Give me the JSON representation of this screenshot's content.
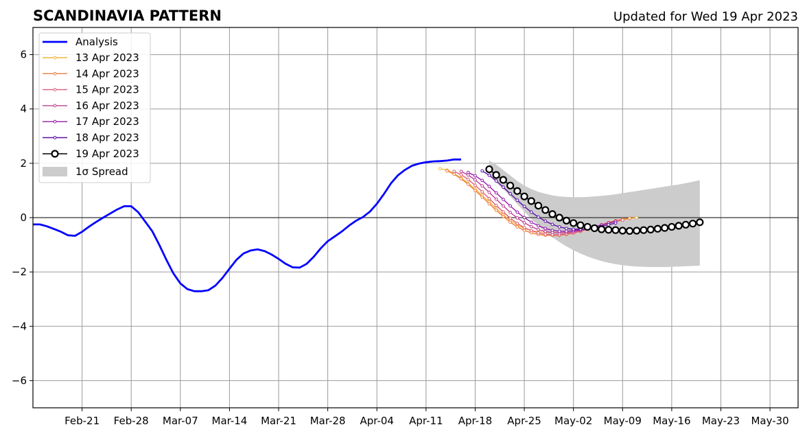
{
  "chart_data": {
    "type": "line",
    "title": "SCANDINAVIA PATTERN",
    "subtitle": "Updated for Wed 19 Apr 2023",
    "xlabel": "",
    "ylabel": "",
    "xlim": [
      "2023-02-14",
      "2023-06-03"
    ],
    "ylim": [
      -7,
      7
    ],
    "grid": true,
    "legend_position": "top-left",
    "x_ticks": [
      {
        "date": "2023-02-21",
        "label": "Feb-21"
      },
      {
        "date": "2023-02-28",
        "label": "Feb-28"
      },
      {
        "date": "2023-03-07",
        "label": "Mar-07"
      },
      {
        "date": "2023-03-14",
        "label": "Mar-14"
      },
      {
        "date": "2023-03-21",
        "label": "Mar-21"
      },
      {
        "date": "2023-03-28",
        "label": "Mar-28"
      },
      {
        "date": "2023-04-04",
        "label": "Apr-04"
      },
      {
        "date": "2023-04-11",
        "label": "Apr-11"
      },
      {
        "date": "2023-04-18",
        "label": "Apr-18"
      },
      {
        "date": "2023-04-25",
        "label": "Apr-25"
      },
      {
        "date": "2023-05-02",
        "label": "May-02"
      },
      {
        "date": "2023-05-09",
        "label": "May-09"
      },
      {
        "date": "2023-05-16",
        "label": "May-16"
      },
      {
        "date": "2023-05-23",
        "label": "May-23"
      },
      {
        "date": "2023-05-30",
        "label": "May-30"
      }
    ],
    "y_ticks": [
      {
        "value": -6,
        "label": "−6"
      },
      {
        "value": -4,
        "label": "−4"
      },
      {
        "value": -2,
        "label": "−2"
      },
      {
        "value": 0,
        "label": "0"
      },
      {
        "value": 2,
        "label": "2"
      },
      {
        "value": 4,
        "label": "4"
      },
      {
        "value": 6,
        "label": "6"
      }
    ],
    "analysis": {
      "name": "Analysis",
      "color": "#0000ff",
      "start_date": "2023-02-14",
      "values": [
        -0.25,
        -0.25,
        -0.32,
        -0.42,
        -0.52,
        -0.65,
        -0.67,
        -0.52,
        -0.33,
        -0.16,
        0.0,
        0.15,
        0.3,
        0.42,
        0.42,
        0.2,
        -0.15,
        -0.5,
        -1.0,
        -1.55,
        -2.05,
        -2.42,
        -2.63,
        -2.71,
        -2.71,
        -2.67,
        -2.5,
        -2.22,
        -1.88,
        -1.55,
        -1.32,
        -1.21,
        -1.17,
        -1.23,
        -1.36,
        -1.52,
        -1.7,
        -1.83,
        -1.84,
        -1.7,
        -1.44,
        -1.13,
        -0.87,
        -0.69,
        -0.51,
        -0.3,
        -0.12,
        0.02,
        0.22,
        0.51,
        0.87,
        1.26,
        1.56,
        1.76,
        1.91,
        1.99,
        2.04,
        2.07,
        2.08,
        2.1,
        2.14,
        2.14
      ]
    },
    "forecasts": [
      {
        "name": "13 Apr 2023",
        "color": "#f7b53a",
        "start_date": "2023-04-13",
        "values": [
          1.8,
          1.75,
          1.62,
          1.46,
          1.27,
          1.05,
          0.82,
          0.58,
          0.34,
          0.1,
          -0.1,
          -0.27,
          -0.4,
          -0.48,
          -0.52,
          -0.54,
          -0.55,
          -0.56,
          -0.56,
          -0.54,
          -0.5,
          -0.44,
          -0.37,
          -0.29,
          -0.21,
          -0.14,
          -0.08,
          -0.03,
          0.0
        ]
      },
      {
        "name": "14 Apr 2023",
        "color": "#ee7e3a",
        "start_date": "2023-04-14",
        "values": [
          1.72,
          1.6,
          1.43,
          1.23,
          1.0,
          0.76,
          0.51,
          0.27,
          0.04,
          -0.17,
          -0.34,
          -0.47,
          -0.56,
          -0.62,
          -0.65,
          -0.66,
          -0.65,
          -0.62,
          -0.57,
          -0.5,
          -0.42,
          -0.34,
          -0.26,
          -0.18,
          -0.11,
          -0.06,
          -0.02
        ]
      },
      {
        "name": "15 Apr 2023",
        "color": "#df5b78",
        "start_date": "2023-04-15",
        "values": [
          1.7,
          1.58,
          1.41,
          1.19,
          0.95,
          0.7,
          0.45,
          0.21,
          -0.02,
          -0.21,
          -0.37,
          -0.48,
          -0.56,
          -0.61,
          -0.63,
          -0.63,
          -0.6,
          -0.56,
          -0.5,
          -0.43,
          -0.35,
          -0.27,
          -0.2,
          -0.14,
          -0.09
        ]
      },
      {
        "name": "16 Apr 2023",
        "color": "#be3d93",
        "start_date": "2023-04-16",
        "values": [
          1.7,
          1.57,
          1.39,
          1.17,
          0.93,
          0.68,
          0.43,
          0.19,
          -0.01,
          -0.19,
          -0.33,
          -0.44,
          -0.51,
          -0.55,
          -0.56,
          -0.55,
          -0.52,
          -0.47,
          -0.41,
          -0.34,
          -0.27,
          -0.2,
          -0.14
        ]
      },
      {
        "name": "17 Apr 2023",
        "color": "#9419a8",
        "start_date": "2023-04-17",
        "values": [
          1.66,
          1.54,
          1.37,
          1.15,
          0.91,
          0.67,
          0.43,
          0.2,
          0.0,
          -0.17,
          -0.3,
          -0.4,
          -0.47,
          -0.5,
          -0.5,
          -0.48,
          -0.44,
          -0.39,
          -0.33,
          -0.27,
          -0.2,
          -0.14
        ]
      },
      {
        "name": "18 Apr 2023",
        "color": "#5a0ea8",
        "start_date": "2023-04-19",
        "values": [
          1.72,
          1.56,
          1.35,
          1.12,
          0.88,
          0.64,
          0.41,
          0.2,
          0.02,
          -0.13,
          -0.25,
          -0.34,
          -0.4,
          -0.43,
          -0.43,
          -0.41,
          -0.37,
          -0.32,
          -0.26,
          -0.2
        ]
      }
    ],
    "current_forecast": {
      "name": "19 Apr 2023",
      "color": "#000000",
      "start_date": "2023-04-20",
      "values": [
        1.78,
        1.57,
        1.39,
        1.18,
        0.98,
        0.78,
        0.61,
        0.44,
        0.28,
        0.13,
        0.0,
        -0.11,
        -0.2,
        -0.28,
        -0.34,
        -0.39,
        -0.43,
        -0.45,
        -0.46,
        -0.48,
        -0.49,
        -0.48,
        -0.46,
        -0.44,
        -0.41,
        -0.38,
        -0.34,
        -0.3,
        -0.26,
        -0.22,
        -0.17
      ]
    },
    "spread": {
      "name": "1σ Spread",
      "color": "#cccccc",
      "start_date": "2023-04-20",
      "upper": [
        2.1,
        1.95,
        1.75,
        1.55,
        1.35,
        1.18,
        1.05,
        0.95,
        0.88,
        0.82,
        0.78,
        0.76,
        0.75,
        0.75,
        0.76,
        0.78,
        0.8,
        0.83,
        0.86,
        0.9,
        0.94,
        0.98,
        1.02,
        1.06,
        1.1,
        1.14,
        1.18,
        1.22,
        1.27,
        1.32,
        1.38
      ],
      "lower": [
        1.55,
        1.3,
        1.05,
        0.78,
        0.5,
        0.22,
        -0.05,
        -0.3,
        -0.52,
        -0.72,
        -0.9,
        -1.06,
        -1.2,
        -1.32,
        -1.43,
        -1.52,
        -1.6,
        -1.66,
        -1.71,
        -1.75,
        -1.78,
        -1.8,
        -1.81,
        -1.82,
        -1.82,
        -1.82,
        -1.81,
        -1.8,
        -1.79,
        -1.78,
        -1.77
      ]
    }
  }
}
